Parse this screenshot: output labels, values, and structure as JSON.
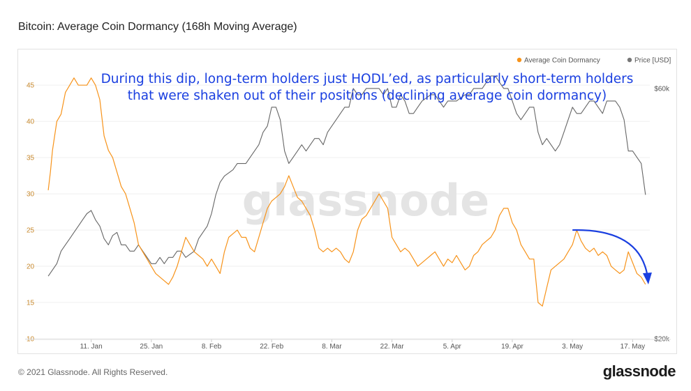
{
  "chart_data": {
    "type": "line",
    "title": "Bitcoin: Average Coin Dormancy (168h Moving Average)",
    "xlabel": "",
    "ylabel_left": "",
    "ylabel_right": "",
    "x_ticks": [
      "11. Jan",
      "25. Jan",
      "8. Feb",
      "22. Feb",
      "8. Mar",
      "22. Mar",
      "5. Apr",
      "19. Apr",
      "3. May",
      "17. May"
    ],
    "x_tick_days": [
      10,
      24,
      38,
      52,
      66,
      80,
      94,
      108,
      122,
      136
    ],
    "x_range_days": [
      -0.5,
      140
    ],
    "y_left_ticks": [
      "10",
      "15",
      "20",
      "25",
      "30",
      "35",
      "40",
      "45"
    ],
    "y_left_range": [
      10,
      48
    ],
    "y_right_ticks": [
      "$20k",
      "$60k"
    ],
    "y_right_range_k": [
      20,
      64
    ],
    "legend": {
      "placement": "top-right"
    },
    "grid": {
      "horizontal": true,
      "vertical": false
    },
    "series": [
      {
        "name": "Average Coin Dormancy",
        "axis": "left",
        "color": "#f7931a",
        "points": [
          [
            0,
            30.5
          ],
          [
            0.5,
            33
          ],
          [
            1,
            36
          ],
          [
            1.5,
            38
          ],
          [
            2,
            40
          ],
          [
            3,
            41
          ],
          [
            4,
            44
          ],
          [
            5,
            45
          ],
          [
            6,
            46
          ],
          [
            7,
            45
          ],
          [
            8,
            45
          ],
          [
            9,
            45
          ],
          [
            10,
            46
          ],
          [
            11,
            45
          ],
          [
            12,
            43
          ],
          [
            13,
            38
          ],
          [
            14,
            36
          ],
          [
            15,
            35
          ],
          [
            16,
            33
          ],
          [
            17,
            31
          ],
          [
            18,
            30
          ],
          [
            19,
            28
          ],
          [
            20,
            26
          ],
          [
            21,
            23
          ],
          [
            22,
            22
          ],
          [
            23,
            21
          ],
          [
            24,
            20
          ],
          [
            25,
            19
          ],
          [
            26,
            18.5
          ],
          [
            27,
            18
          ],
          [
            28,
            17.5
          ],
          [
            29,
            18.5
          ],
          [
            30,
            20
          ],
          [
            31,
            22
          ],
          [
            32,
            24
          ],
          [
            33,
            23
          ],
          [
            34,
            22
          ],
          [
            35,
            21.5
          ],
          [
            36,
            21
          ],
          [
            37,
            20
          ],
          [
            38,
            21
          ],
          [
            39,
            20
          ],
          [
            40,
            19
          ],
          [
            41,
            22
          ],
          [
            42,
            24
          ],
          [
            43,
            24.5
          ],
          [
            44,
            25
          ],
          [
            45,
            24
          ],
          [
            46,
            24
          ],
          [
            47,
            22.5
          ],
          [
            48,
            22
          ],
          [
            49,
            24
          ],
          [
            50,
            26
          ],
          [
            51,
            28
          ],
          [
            52,
            29
          ],
          [
            53,
            29.5
          ],
          [
            54,
            30
          ],
          [
            55,
            31
          ],
          [
            56,
            32.5
          ],
          [
            57,
            31
          ],
          [
            58,
            29.5
          ],
          [
            59,
            29
          ],
          [
            60,
            28
          ],
          [
            61,
            27
          ],
          [
            62,
            25
          ],
          [
            63,
            22.5
          ],
          [
            64,
            22
          ],
          [
            65,
            22.5
          ],
          [
            66,
            22
          ],
          [
            67,
            22.5
          ],
          [
            68,
            22
          ],
          [
            69,
            21
          ],
          [
            70,
            20.5
          ],
          [
            71,
            22
          ],
          [
            72,
            25
          ],
          [
            73,
            26.5
          ],
          [
            74,
            27
          ],
          [
            75,
            28
          ],
          [
            76,
            29
          ],
          [
            77,
            30
          ],
          [
            78,
            29
          ],
          [
            79,
            28
          ],
          [
            80,
            24
          ],
          [
            81,
            23
          ],
          [
            82,
            22
          ],
          [
            83,
            22.5
          ],
          [
            84,
            22
          ],
          [
            85,
            21
          ],
          [
            86,
            20
          ],
          [
            87,
            20.5
          ],
          [
            88,
            21
          ],
          [
            89,
            21.5
          ],
          [
            90,
            22
          ],
          [
            91,
            21
          ],
          [
            92,
            20
          ],
          [
            93,
            21
          ],
          [
            94,
            20.5
          ],
          [
            95,
            21.5
          ],
          [
            96,
            20.5
          ],
          [
            97,
            19.5
          ],
          [
            98,
            20
          ],
          [
            99,
            21.5
          ],
          [
            100,
            22
          ],
          [
            101,
            23
          ],
          [
            102,
            23.5
          ],
          [
            103,
            24
          ],
          [
            104,
            25
          ],
          [
            105,
            27
          ],
          [
            106,
            28
          ],
          [
            107,
            28
          ],
          [
            108,
            26
          ],
          [
            109,
            25
          ],
          [
            110,
            23
          ],
          [
            111,
            22
          ],
          [
            112,
            21
          ],
          [
            113,
            21
          ],
          [
            114,
            15
          ],
          [
            115,
            14.5
          ],
          [
            116,
            17
          ],
          [
            117,
            19.5
          ],
          [
            118,
            20
          ],
          [
            119,
            20.5
          ],
          [
            120,
            21
          ],
          [
            121,
            22
          ],
          [
            122,
            23
          ],
          [
            123,
            25
          ],
          [
            124,
            23.5
          ],
          [
            125,
            22.5
          ],
          [
            126,
            22
          ],
          [
            127,
            22.5
          ],
          [
            128,
            21.5
          ],
          [
            129,
            22
          ],
          [
            130,
            21.5
          ],
          [
            131,
            20
          ],
          [
            132,
            19.5
          ],
          [
            133,
            19
          ],
          [
            134,
            19.5
          ],
          [
            135,
            22
          ],
          [
            136,
            20.5
          ],
          [
            137,
            19
          ],
          [
            138,
            18.5
          ],
          [
            139,
            17.5
          ]
        ]
      },
      {
        "name": "Price [USD]",
        "axis": "right",
        "color": "#666666",
        "unit": "k USD",
        "points": [
          [
            0,
            30
          ],
          [
            1,
            31
          ],
          [
            2,
            32
          ],
          [
            3,
            34
          ],
          [
            4,
            35
          ],
          [
            5,
            36
          ],
          [
            6,
            37
          ],
          [
            7,
            38
          ],
          [
            8,
            39
          ],
          [
            9,
            40
          ],
          [
            10,
            40.5
          ],
          [
            11,
            39
          ],
          [
            12,
            38
          ],
          [
            13,
            36
          ],
          [
            14,
            35
          ],
          [
            15,
            36.5
          ],
          [
            16,
            37
          ],
          [
            17,
            35
          ],
          [
            18,
            35
          ],
          [
            19,
            34
          ],
          [
            20,
            34
          ],
          [
            21,
            35
          ],
          [
            22,
            34
          ],
          [
            23,
            33
          ],
          [
            24,
            32
          ],
          [
            25,
            32
          ],
          [
            26,
            33
          ],
          [
            27,
            32
          ],
          [
            28,
            33
          ],
          [
            29,
            33
          ],
          [
            30,
            34
          ],
          [
            31,
            34
          ],
          [
            32,
            33
          ],
          [
            33,
            33.5
          ],
          [
            34,
            34
          ],
          [
            35,
            36
          ],
          [
            36,
            37
          ],
          [
            37,
            38
          ],
          [
            38,
            40
          ],
          [
            39,
            43
          ],
          [
            40,
            45
          ],
          [
            41,
            46
          ],
          [
            42,
            46.5
          ],
          [
            43,
            47
          ],
          [
            44,
            48
          ],
          [
            45,
            48
          ],
          [
            46,
            48
          ],
          [
            47,
            49
          ],
          [
            48,
            50
          ],
          [
            49,
            51
          ],
          [
            50,
            53
          ],
          [
            51,
            54
          ],
          [
            52,
            57
          ],
          [
            53,
            57
          ],
          [
            54,
            55
          ],
          [
            55,
            50
          ],
          [
            56,
            48
          ],
          [
            57,
            49
          ],
          [
            58,
            50
          ],
          [
            59,
            51
          ],
          [
            60,
            50
          ],
          [
            61,
            51
          ],
          [
            62,
            52
          ],
          [
            63,
            52
          ],
          [
            64,
            51
          ],
          [
            65,
            53
          ],
          [
            66,
            54
          ],
          [
            67,
            55
          ],
          [
            68,
            56
          ],
          [
            69,
            57
          ],
          [
            70,
            57
          ],
          [
            71,
            60
          ],
          [
            72,
            59
          ],
          [
            73,
            59
          ],
          [
            74,
            60
          ],
          [
            75,
            60
          ],
          [
            76,
            60
          ],
          [
            77,
            60
          ],
          [
            78,
            59
          ],
          [
            79,
            60
          ],
          [
            80,
            57
          ],
          [
            81,
            57
          ],
          [
            82,
            59
          ],
          [
            83,
            58
          ],
          [
            84,
            56
          ],
          [
            85,
            56
          ],
          [
            86,
            57
          ],
          [
            87,
            58
          ],
          [
            88,
            58.5
          ],
          [
            89,
            59
          ],
          [
            90,
            59
          ],
          [
            91,
            58
          ],
          [
            92,
            57
          ],
          [
            93,
            58
          ],
          [
            94,
            58
          ],
          [
            95,
            58
          ],
          [
            96,
            58.5
          ],
          [
            97,
            59
          ],
          [
            98,
            59
          ],
          [
            99,
            60
          ],
          [
            100,
            60
          ],
          [
            101,
            60
          ],
          [
            102,
            61
          ],
          [
            103,
            62
          ],
          [
            104,
            62
          ],
          [
            105,
            61
          ],
          [
            106,
            60
          ],
          [
            107,
            60
          ],
          [
            108,
            58
          ],
          [
            109,
            56
          ],
          [
            110,
            55
          ],
          [
            111,
            56
          ],
          [
            112,
            57
          ],
          [
            113,
            57
          ],
          [
            114,
            53
          ],
          [
            115,
            51
          ],
          [
            116,
            52
          ],
          [
            117,
            51
          ],
          [
            118,
            50
          ],
          [
            119,
            51
          ],
          [
            120,
            53
          ],
          [
            121,
            55
          ],
          [
            122,
            57
          ],
          [
            123,
            56
          ],
          [
            124,
            56
          ],
          [
            125,
            57
          ],
          [
            126,
            58
          ],
          [
            127,
            58
          ],
          [
            128,
            57
          ],
          [
            129,
            56
          ],
          [
            130,
            58
          ],
          [
            131,
            58
          ],
          [
            132,
            58
          ],
          [
            133,
            57
          ],
          [
            134,
            55
          ],
          [
            135,
            50
          ],
          [
            136,
            50
          ],
          [
            137,
            49
          ],
          [
            138,
            48
          ],
          [
            139,
            43
          ]
        ]
      }
    ],
    "annotations": [
      {
        "text_line1": "During this dip, long-term holders just HODL’ed, as particularly short-term holders",
        "text_line2": "that were shaken out of their positions (declining average coin dormancy)",
        "color": "#1a3fe0"
      }
    ],
    "arrow": {
      "color": "#1a3fe0",
      "from": [
        122,
        25
      ],
      "to": [
        139.5,
        17.5
      ]
    }
  },
  "watermark": "glassnode",
  "footer": {
    "copyright": "© 2021 Glassnode. All Rights Reserved.",
    "logo": "glassnode"
  }
}
